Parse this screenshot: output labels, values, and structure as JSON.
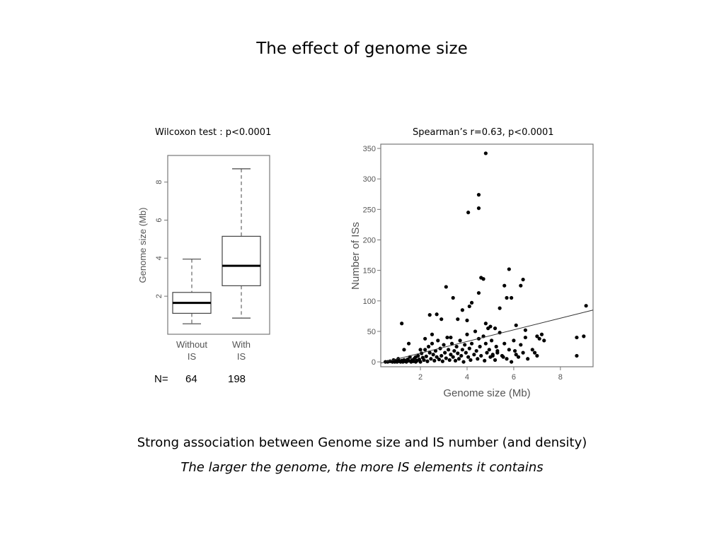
{
  "slide": {
    "title": "The effect of genome size",
    "caption_1": "Strong association between Genome size and IS number (and density)",
    "caption_2": "The larger the genome, the more IS elements it contains"
  },
  "chart_data": [
    {
      "type": "box",
      "title": "Wilcoxon test : p<0.0001",
      "ylabel": "Genome size (Mb)",
      "ylim": [
        0,
        9.4
      ],
      "yticks": [
        2,
        4,
        6,
        8
      ],
      "categories": [
        "Without\nIS",
        "With\nIS"
      ],
      "boxes": [
        {
          "label_line1": "Without",
          "label_line2": "IS",
          "min": 0.55,
          "q1": 1.1,
          "median": 1.65,
          "q3": 2.2,
          "max": 3.95,
          "n": "64"
        },
        {
          "label_line1": "With",
          "label_line2": "IS",
          "min": 0.85,
          "q1": 2.55,
          "median": 3.6,
          "q3": 5.15,
          "max": 8.7,
          "n": "198"
        }
      ],
      "n_prefix": "N="
    },
    {
      "type": "scatter",
      "title": "Spearman’s r=0.63, p<0.0001",
      "xlabel": "Genome size (Mb)",
      "ylabel": "Number of ISs",
      "xlim": [
        0.3,
        9.4
      ],
      "ylim": [
        -8,
        357
      ],
      "xticks": [
        2,
        4,
        6,
        8
      ],
      "yticks": [
        0,
        50,
        100,
        150,
        200,
        250,
        300,
        350
      ],
      "trendline": {
        "x": [
          0.3,
          9.4
        ],
        "y": [
          -2,
          85
        ]
      },
      "points": [
        [
          0.5,
          0
        ],
        [
          0.6,
          0
        ],
        [
          0.7,
          1
        ],
        [
          0.8,
          0
        ],
        [
          0.85,
          3
        ],
        [
          0.9,
          0
        ],
        [
          0.95,
          2
        ],
        [
          1.0,
          0
        ],
        [
          1.05,
          5
        ],
        [
          1.1,
          1
        ],
        [
          1.15,
          0
        ],
        [
          1.2,
          2
        ],
        [
          1.25,
          0
        ],
        [
          1.3,
          3
        ],
        [
          1.35,
          1
        ],
        [
          1.4,
          0
        ],
        [
          1.45,
          4
        ],
        [
          1.5,
          2
        ],
        [
          1.55,
          8
        ],
        [
          1.6,
          0
        ],
        [
          1.65,
          3
        ],
        [
          1.7,
          1
        ],
        [
          1.75,
          6
        ],
        [
          1.8,
          0
        ],
        [
          1.85,
          2
        ],
        [
          1.9,
          10
        ],
        [
          1.95,
          4
        ],
        [
          2.0,
          0
        ],
        [
          2.05,
          14
        ],
        [
          2.1,
          7
        ],
        [
          2.15,
          3
        ],
        [
          2.2,
          20
        ],
        [
          2.25,
          9
        ],
        [
          2.3,
          1
        ],
        [
          2.35,
          25
        ],
        [
          2.4,
          15
        ],
        [
          2.45,
          5
        ],
        [
          2.5,
          30
        ],
        [
          2.55,
          12
        ],
        [
          2.6,
          2
        ],
        [
          2.65,
          18
        ],
        [
          2.7,
          8
        ],
        [
          2.75,
          35
        ],
        [
          2.8,
          4
        ],
        [
          2.85,
          22
        ],
        [
          2.9,
          10
        ],
        [
          2.95,
          1
        ],
        [
          3.0,
          28
        ],
        [
          3.05,
          15
        ],
        [
          3.1,
          6
        ],
        [
          3.15,
          40
        ],
        [
          3.2,
          20
        ],
        [
          3.25,
          3
        ],
        [
          3.3,
          12
        ],
        [
          3.35,
          30
        ],
        [
          3.4,
          8
        ],
        [
          3.45,
          18
        ],
        [
          3.5,
          2
        ],
        [
          3.55,
          25
        ],
        [
          3.6,
          14
        ],
        [
          3.65,
          5
        ],
        [
          3.7,
          35
        ],
        [
          3.75,
          10
        ],
        [
          3.8,
          20
        ],
        [
          3.85,
          0
        ],
        [
          3.9,
          28
        ],
        [
          3.95,
          15
        ],
        [
          4.0,
          45
        ],
        [
          4.05,
          8
        ],
        [
          4.1,
          22
        ],
        [
          4.15,
          3
        ],
        [
          4.2,
          30
        ],
        [
          4.3,
          12
        ],
        [
          4.35,
          50
        ],
        [
          4.4,
          18
        ],
        [
          4.45,
          5
        ],
        [
          4.5,
          38
        ],
        [
          4.55,
          25
        ],
        [
          4.6,
          10
        ],
        [
          4.7,
          42
        ],
        [
          4.75,
          2
        ],
        [
          4.8,
          30
        ],
        [
          4.85,
          15
        ],
        [
          4.9,
          55
        ],
        [
          4.95,
          20
        ],
        [
          5.0,
          8
        ],
        [
          5.05,
          35
        ],
        [
          5.1,
          12
        ],
        [
          5.2,
          3
        ],
        [
          5.25,
          25
        ],
        [
          5.3,
          15
        ],
        [
          5.4,
          48
        ],
        [
          5.5,
          10
        ],
        [
          5.6,
          30
        ],
        [
          5.7,
          5
        ],
        [
          5.8,
          20
        ],
        [
          5.9,
          0
        ],
        [
          6.0,
          35
        ],
        [
          6.1,
          12
        ],
        [
          6.2,
          8
        ],
        [
          6.3,
          28
        ],
        [
          6.4,
          15
        ],
        [
          6.5,
          40
        ],
        [
          6.6,
          5
        ],
        [
          6.8,
          20
        ],
        [
          7.0,
          10
        ],
        [
          7.2,
          45
        ],
        [
          7.3,
          35
        ],
        [
          1.2,
          63
        ],
        [
          1.3,
          20
        ],
        [
          1.5,
          30
        ],
        [
          1.8,
          8
        ],
        [
          2.0,
          20
        ],
        [
          2.2,
          38
        ],
        [
          2.4,
          77
        ],
        [
          2.5,
          45
        ],
        [
          2.7,
          78
        ],
        [
          2.9,
          70
        ],
        [
          3.1,
          123
        ],
        [
          3.3,
          40
        ],
        [
          3.4,
          105
        ],
        [
          3.6,
          70
        ],
        [
          3.8,
          85
        ],
        [
          4.0,
          68
        ],
        [
          4.1,
          91
        ],
        [
          4.2,
          97
        ],
        [
          4.5,
          113
        ],
        [
          4.6,
          138
        ],
        [
          4.7,
          136
        ],
        [
          4.8,
          63
        ],
        [
          5.0,
          58
        ],
        [
          5.2,
          55
        ],
        [
          5.4,
          88
        ],
        [
          5.6,
          125
        ],
        [
          5.7,
          105
        ],
        [
          5.8,
          152
        ],
        [
          5.9,
          105
        ],
        [
          6.1,
          60
        ],
        [
          6.3,
          125
        ],
        [
          6.4,
          135
        ],
        [
          6.5,
          52
        ],
        [
          7.0,
          42
        ],
        [
          7.1,
          38
        ],
        [
          8.7,
          40
        ],
        [
          8.7,
          10
        ],
        [
          9.0,
          42
        ],
        [
          9.1,
          92
        ],
        [
          4.05,
          245
        ],
        [
          4.5,
          274
        ],
        [
          4.5,
          252
        ],
        [
          4.8,
          342
        ],
        [
          5.1,
          10
        ],
        [
          5.3,
          18
        ],
        [
          6.9,
          15
        ],
        [
          5.55,
          8
        ],
        [
          6.05,
          18
        ]
      ]
    }
  ]
}
